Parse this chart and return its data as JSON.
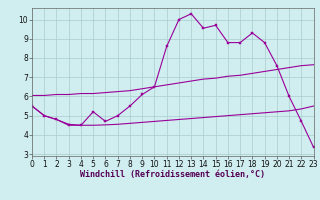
{
  "xlabel": "Windchill (Refroidissement éolien,°C)",
  "x": [
    0,
    1,
    2,
    3,
    4,
    5,
    6,
    7,
    8,
    9,
    10,
    11,
    12,
    13,
    14,
    15,
    16,
    17,
    18,
    19,
    20,
    21,
    22,
    23
  ],
  "y_main": [
    5.5,
    5.0,
    4.8,
    4.5,
    4.5,
    5.2,
    4.7,
    5.0,
    5.5,
    6.1,
    6.5,
    8.6,
    10.0,
    10.3,
    9.55,
    9.7,
    8.8,
    8.8,
    9.3,
    8.8,
    7.6,
    6.0,
    4.7,
    3.35
  ],
  "y_upper": [
    6.05,
    6.05,
    6.1,
    6.1,
    6.15,
    6.15,
    6.2,
    6.25,
    6.3,
    6.4,
    6.5,
    6.6,
    6.7,
    6.8,
    6.9,
    6.95,
    7.05,
    7.1,
    7.2,
    7.3,
    7.4,
    7.5,
    7.6,
    7.65
  ],
  "y_lower": [
    5.5,
    5.0,
    4.8,
    4.55,
    4.5,
    4.5,
    4.52,
    4.55,
    4.6,
    4.65,
    4.7,
    4.75,
    4.8,
    4.85,
    4.9,
    4.95,
    5.0,
    5.05,
    5.1,
    5.15,
    5.2,
    5.25,
    5.35,
    5.5
  ],
  "color": "#990099",
  "bg_color": "#d0eef0",
  "grid_color": "#aacccc",
  "xlim": [
    0,
    23
  ],
  "ylim": [
    2.9,
    10.6
  ],
  "yticks": [
    3,
    4,
    5,
    6,
    7,
    8,
    9,
    10
  ],
  "xticks": [
    0,
    1,
    2,
    3,
    4,
    5,
    6,
    7,
    8,
    9,
    10,
    11,
    12,
    13,
    14,
    15,
    16,
    17,
    18,
    19,
    20,
    21,
    22,
    23
  ],
  "tick_fontsize": 5.5,
  "label_fontsize": 6.0
}
